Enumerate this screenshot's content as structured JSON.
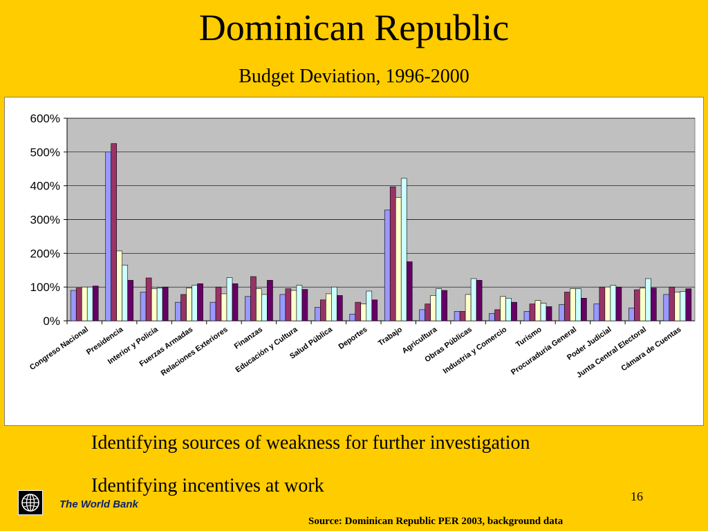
{
  "slide": {
    "title": "Dominican Republic",
    "subtitle": "Budget Deviation, 1996-2000",
    "bullets": [
      "Identifying sources of weakness for further investigation",
      "Identifying incentives at work"
    ],
    "logo_text": "The World Bank",
    "page_number": "16",
    "source": "Source: Dominican Republic PER 2003, background data"
  },
  "chart_data": {
    "type": "bar",
    "title": "",
    "xlabel": "",
    "ylabel": "",
    "ylim": [
      0,
      600
    ],
    "yticks": [
      "0%",
      "100%",
      "200%",
      "300%",
      "400%",
      "500%",
      "600%"
    ],
    "grid": true,
    "legend": "none",
    "categories": [
      "Congreso Nacional",
      "Presidencia",
      "Interior y Policía",
      "Fuerzas Armadas",
      "Relaciones Exteriores",
      "Finanzas",
      "Educación y Cultura",
      "Salud Pública",
      "Deportes",
      "Trabajo",
      "Agricultura",
      "Obras Públicas",
      "Industria y Comercio",
      "Turismo",
      "Procuraduría General",
      "Poder Judicial",
      "Junta Central Electoral",
      "Cámara de Cuentas"
    ],
    "series": [
      {
        "color": "#9999FF",
        "values": [
          90,
          500,
          85,
          55,
          55,
          72,
          78,
          40,
          20,
          328,
          33,
          28,
          22,
          28,
          48,
          50,
          38,
          78
        ]
      },
      {
        "color": "#993366",
        "values": [
          97,
          525,
          127,
          78,
          100,
          131,
          95,
          62,
          55,
          397,
          50,
          28,
          33,
          50,
          85,
          100,
          92,
          100
        ]
      },
      {
        "color": "#FFFFCC",
        "values": [
          100,
          207,
          95,
          97,
          80,
          95,
          90,
          80,
          50,
          365,
          75,
          78,
          72,
          60,
          95,
          100,
          97,
          85
        ]
      },
      {
        "color": "#CCFFFF",
        "values": [
          100,
          165,
          97,
          105,
          128,
          78,
          105,
          100,
          88,
          422,
          95,
          125,
          67,
          52,
          95,
          105,
          125,
          87
        ]
      },
      {
        "color": "#660066",
        "values": [
          103,
          120,
          100,
          110,
          110,
          120,
          93,
          75,
          62,
          175,
          90,
          120,
          55,
          42,
          67,
          100,
          97,
          95
        ]
      }
    ]
  }
}
